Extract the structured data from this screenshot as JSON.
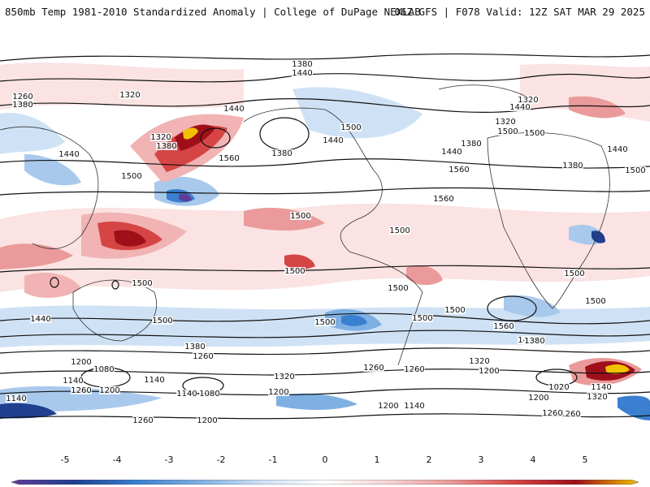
{
  "header": {
    "left_title": "850mb Temp 1981-2010 Standardized Anomaly | College of DuPage NEXLAB",
    "right_title": "06Z GFS | F078 Valid: 12Z SAT MAR 29 2025"
  },
  "colors": {
    "neg5": "#5e3c99",
    "neg4": "#1f3f8f",
    "neg3": "#3a7fd0",
    "neg2": "#7fb0e3",
    "neg1": "#cfe2f5",
    "zero": "#ffffff",
    "pos1": "#f7d4d4",
    "pos2": "#ea9a9a",
    "pos3": "#d64545",
    "pos4": "#9e0f1a",
    "pos5": "#f2c200"
  },
  "colorbar": {
    "labels": [
      "-5",
      "-4",
      "-3",
      "-2",
      "-1",
      "0",
      "1",
      "2",
      "3",
      "4",
      "5"
    ]
  },
  "contour_labels": [
    {
      "text": "1380"
    },
    {
      "text": "1440"
    },
    {
      "text": "1260"
    },
    {
      "text": "1380"
    },
    {
      "text": "1320"
    },
    {
      "text": "1440"
    },
    {
      "text": "1320"
    },
    {
      "text": "1380"
    },
    {
      "text": "1560"
    },
    {
      "text": "1380"
    },
    {
      "text": "1440"
    },
    {
      "text": "1500"
    },
    {
      "text": "1440"
    },
    {
      "text": "1500"
    },
    {
      "text": "1500"
    },
    {
      "text": "1560"
    },
    {
      "text": "1380"
    },
    {
      "text": "1440"
    },
    {
      "text": "1560"
    },
    {
      "text": "1320"
    },
    {
      "text": "1320"
    },
    {
      "text": "1500"
    },
    {
      "text": "1440"
    },
    {
      "text": "1380"
    },
    {
      "text": "1500"
    },
    {
      "text": "1500"
    },
    {
      "text": "1500"
    },
    {
      "text": "1500"
    },
    {
      "text": "1500"
    },
    {
      "text": "1500"
    },
    {
      "text": "1500"
    },
    {
      "text": "1500"
    },
    {
      "text": "1500"
    },
    {
      "text": "1440"
    },
    {
      "text": "1440"
    },
    {
      "text": "1500"
    },
    {
      "text": "1500"
    },
    {
      "text": "1500"
    },
    {
      "text": "1380"
    },
    {
      "text": "1260"
    },
    {
      "text": "1380"
    },
    {
      "text": "1320"
    },
    {
      "text": "1260"
    },
    {
      "text": "1200"
    },
    {
      "text": "1080"
    },
    {
      "text": "1140"
    },
    {
      "text": "1140"
    },
    {
      "text": "1080"
    },
    {
      "text": "1260"
    },
    {
      "text": "1200"
    },
    {
      "text": "1140"
    },
    {
      "text": "1200"
    },
    {
      "text": "1140"
    },
    {
      "text": "1260"
    },
    {
      "text": "1320"
    },
    {
      "text": "1200"
    },
    {
      "text": "1020"
    },
    {
      "text": "1140"
    },
    {
      "text": "1200"
    },
    {
      "text": "1320"
    },
    {
      "text": "1560"
    },
    {
      "text": "1440"
    },
    {
      "text": "1380"
    },
    {
      "text": "1260"
    },
    {
      "text": "1200"
    },
    {
      "text": "1200"
    },
    {
      "text": "1260"
    },
    {
      "text": "1260"
    },
    {
      "text": "1140"
    }
  ]
}
